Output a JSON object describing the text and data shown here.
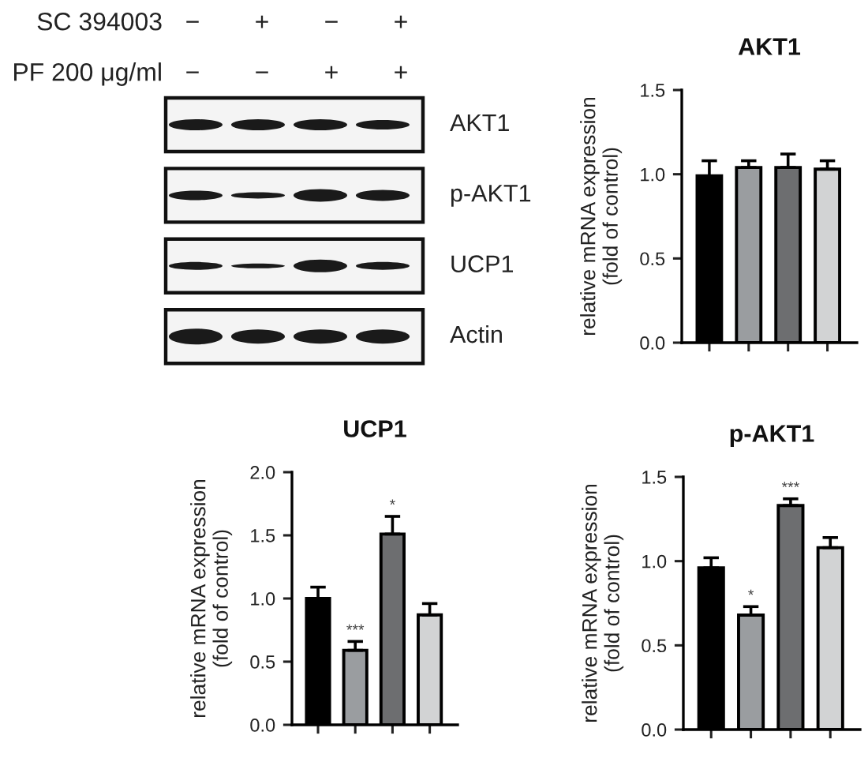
{
  "chart_data": [
    {
      "type": "other",
      "annotations": [
        "SC 394003",
        "−",
        "+",
        "−",
        "+",
        "PF 200 μg/ml",
        "−",
        "−",
        "+",
        "+",
        "AKT1",
        "p-AKT1",
        "UCP1",
        "Actin"
      ]
    },
    {
      "type": "bar",
      "title": "AKT1",
      "ylabel": "relative mRNA expression\n(fold of control)",
      "categories": [
        null,
        null,
        null,
        null
      ],
      "values": [
        0.99,
        1.04,
        1.04,
        1.03
      ],
      "colors": [
        "#000000",
        "#9a9da0",
        "#6d6e70",
        "#d2d3d4"
      ],
      "errors": [
        [
          0.99,
          1.08
        ],
        [
          1.04,
          1.08
        ],
        [
          1.04,
          1.12
        ],
        [
          1.03,
          1.08
        ]
      ],
      "ylim": [
        0,
        1.5
      ],
      "yticks": [
        {
          "value": 0,
          "label": "0.0"
        },
        {
          "value": 0.5,
          "label": "0.5"
        },
        {
          "value": 1,
          "label": "1.0"
        },
        {
          "value": 1.5,
          "label": "1.5"
        }
      ]
    },
    {
      "type": "bar",
      "title": "UCP1",
      "ylabel": "relative mRNA expression\n(fold of control)",
      "categories": [
        null,
        null,
        null,
        null
      ],
      "values": [
        1.0,
        0.59,
        1.51,
        0.87
      ],
      "colors": [
        "#000000",
        "#9a9da0",
        "#6d6e70",
        "#d2d3d4"
      ],
      "errors": [
        [
          1.0,
          1.09
        ],
        [
          0.59,
          0.66
        ],
        [
          1.51,
          1.65
        ],
        [
          0.87,
          0.96
        ]
      ],
      "value_labels": [
        null,
        "***",
        "*",
        null
      ],
      "ylim": [
        0,
        2
      ],
      "yticks": [
        {
          "value": 0,
          "label": "0.0"
        },
        {
          "value": 0.5,
          "label": "0.5"
        },
        {
          "value": 1,
          "label": "1.0"
        },
        {
          "value": 1.5,
          "label": "1.5"
        },
        {
          "value": 2,
          "label": "2.0"
        }
      ]
    },
    {
      "type": "bar",
      "title": "p-AKT1",
      "ylabel": "relative mRNA expression\n(fold of control)",
      "categories": [
        null,
        null,
        null,
        null
      ],
      "values": [
        0.96,
        0.68,
        1.33,
        1.08
      ],
      "colors": [
        "#000000",
        "#9a9da0",
        "#6d6e70",
        "#d2d3d4"
      ],
      "errors": [
        [
          0.96,
          1.02
        ],
        [
          0.68,
          0.73
        ],
        [
          1.33,
          1.37
        ],
        [
          1.08,
          1.14
        ]
      ],
      "value_labels": [
        null,
        "*",
        "***",
        null
      ],
      "ylim": [
        0,
        1.5
      ],
      "yticks": [
        {
          "value": 0,
          "label": "0.0"
        },
        {
          "value": 0.5,
          "label": "0.5"
        },
        {
          "value": 1,
          "label": "1.0"
        },
        {
          "value": 1.5,
          "label": "1.5"
        }
      ]
    }
  ]
}
